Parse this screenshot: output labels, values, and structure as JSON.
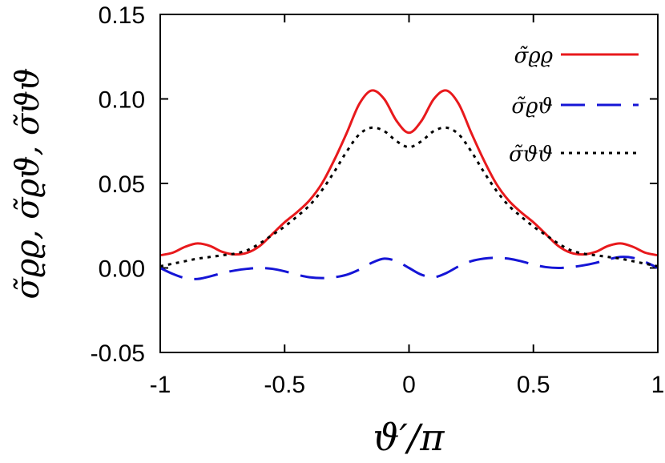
{
  "chart_data": {
    "type": "line",
    "xlabel": "ϑ′/π",
    "ylabel": "σ̃ϱϱ, σ̃ϱϑ, σ̃ϑϑ",
    "xlim": [
      -1,
      1
    ],
    "ylim": [
      -0.05,
      0.15
    ],
    "x_ticks": [
      -1,
      -0.5,
      0,
      0.5,
      1
    ],
    "x_tick_labels": [
      "-1",
      "-0.5",
      "0",
      "0.5",
      "1"
    ],
    "y_ticks": [
      -0.05,
      0,
      0.05,
      0.1,
      0.15
    ],
    "y_tick_labels": [
      "-0.05",
      "0.00",
      "0.05",
      "0.10",
      "0.15"
    ],
    "grid": false,
    "legend_position": "top-right",
    "series": [
      {
        "name": "σ̃ϱϱ",
        "color": "#e8191c",
        "style": "solid",
        "x": [
          -1,
          -0.95,
          -0.9,
          -0.85,
          -0.8,
          -0.75,
          -0.7,
          -0.65,
          -0.6,
          -0.55,
          -0.5,
          -0.45,
          -0.4,
          -0.35,
          -0.3,
          -0.25,
          -0.2,
          -0.15,
          -0.1,
          -0.05,
          0,
          0.05,
          0.1,
          0.15,
          0.2,
          0.25,
          0.3,
          0.35,
          0.4,
          0.45,
          0.5,
          0.55,
          0.6,
          0.65,
          0.7,
          0.75,
          0.8,
          0.85,
          0.9,
          0.95,
          1
        ],
        "y": [
          0.0075,
          0.009,
          0.0125,
          0.0145,
          0.013,
          0.0095,
          0.008,
          0.009,
          0.013,
          0.02,
          0.027,
          0.033,
          0.04,
          0.05,
          0.064,
          0.08,
          0.097,
          0.105,
          0.1,
          0.087,
          0.08,
          0.087,
          0.1,
          0.105,
          0.097,
          0.08,
          0.064,
          0.05,
          0.04,
          0.033,
          0.027,
          0.02,
          0.013,
          0.009,
          0.008,
          0.0095,
          0.013,
          0.0145,
          0.0125,
          0.009,
          0.0075
        ]
      },
      {
        "name": "σ̃ϱϑ",
        "color": "#1515d6",
        "style": "dashed",
        "x": [
          -1,
          -0.95,
          -0.9,
          -0.85,
          -0.8,
          -0.75,
          -0.7,
          -0.65,
          -0.6,
          -0.55,
          -0.5,
          -0.45,
          -0.4,
          -0.35,
          -0.3,
          -0.25,
          -0.2,
          -0.15,
          -0.1,
          -0.05,
          0,
          0.05,
          0.1,
          0.15,
          0.2,
          0.25,
          0.3,
          0.35,
          0.4,
          0.45,
          0.5,
          0.55,
          0.6,
          0.65,
          0.7,
          0.75,
          0.8,
          0.85,
          0.9,
          0.95,
          1
        ],
        "y": [
          0.0,
          -0.0035,
          -0.006,
          -0.0065,
          -0.005,
          -0.003,
          -0.0015,
          -0.0005,
          0.0,
          -0.0005,
          -0.002,
          -0.004,
          -0.0055,
          -0.006,
          -0.0055,
          -0.004,
          -0.001,
          0.003,
          0.0055,
          0.004,
          0.0,
          -0.004,
          -0.0055,
          -0.003,
          0.001,
          0.004,
          0.0055,
          0.006,
          0.0055,
          0.004,
          0.002,
          0.0005,
          0.0,
          0.0005,
          0.0015,
          0.003,
          0.005,
          0.0065,
          0.006,
          0.0035,
          0.0
        ]
      },
      {
        "name": "σ̃ϑϑ",
        "color": "#000000",
        "style": "dotted",
        "x": [
          -1,
          -0.95,
          -0.9,
          -0.85,
          -0.8,
          -0.75,
          -0.7,
          -0.65,
          -0.6,
          -0.55,
          -0.5,
          -0.45,
          -0.4,
          -0.35,
          -0.3,
          -0.25,
          -0.2,
          -0.15,
          -0.1,
          -0.05,
          0,
          0.05,
          0.1,
          0.15,
          0.2,
          0.25,
          0.3,
          0.35,
          0.4,
          0.45,
          0.5,
          0.55,
          0.6,
          0.65,
          0.7,
          0.75,
          0.8,
          0.85,
          0.9,
          0.95,
          1
        ],
        "y": [
          0.001,
          0.0025,
          0.004,
          0.0055,
          0.0065,
          0.0075,
          0.0085,
          0.0105,
          0.0145,
          0.0195,
          0.0245,
          0.0305,
          0.037,
          0.046,
          0.057,
          0.069,
          0.079,
          0.083,
          0.081,
          0.075,
          0.0715,
          0.075,
          0.081,
          0.083,
          0.079,
          0.069,
          0.057,
          0.046,
          0.037,
          0.0305,
          0.0245,
          0.0195,
          0.0145,
          0.0105,
          0.0085,
          0.0075,
          0.0065,
          0.0055,
          0.004,
          0.0025,
          0.001
        ]
      }
    ]
  }
}
